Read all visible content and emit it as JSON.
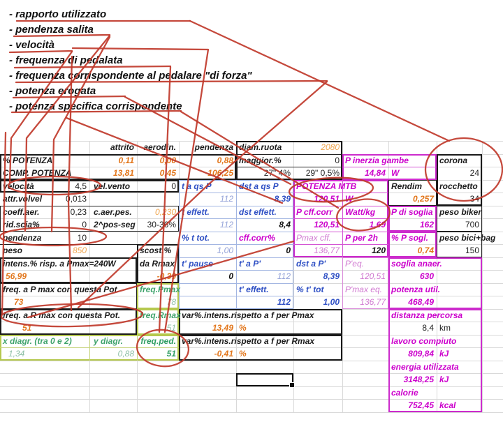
{
  "colors": {
    "annotation_red": "#c0392b",
    "accent_magenta": "#cc00cc",
    "accent_orange": "#e2761b",
    "accent_blue": "#2e4fc4",
    "accent_green": "#3fa36b"
  },
  "annotations": {
    "items": [
      "- rapporto utilizzato",
      "- pendenza salita",
      "- velocità",
      "- frequenza di pedalata",
      "- frequenza corrispondente al pedalare \"di forza\"",
      "- potenza erogata",
      "- potenza specifica corrispondente"
    ]
  },
  "sheet": {
    "selected_cell": {
      "value": ""
    },
    "cells": [
      {
        "r": 0,
        "c": 1,
        "e": 3,
        "t": "attrito",
        "k": "lbl",
        "a": "r"
      },
      {
        "r": 0,
        "c": 3,
        "t": "aerodin.",
        "k": "lbl",
        "a": "r"
      },
      {
        "r": 0,
        "c": 4,
        "t": "pendenza",
        "k": "lbl",
        "a": "r"
      },
      {
        "r": 0,
        "c": 5,
        "t": "diam.ruota",
        "k": "lbl"
      },
      {
        "r": 0,
        "c": 6,
        "t": "2080",
        "k": "orgl",
        "a": "r"
      },
      {
        "r": 1,
        "c": 0,
        "e": 2,
        "t": "% POTENZA",
        "k": "lbl"
      },
      {
        "r": 1,
        "c": 2,
        "t": "0,11",
        "k": "org",
        "a": "r"
      },
      {
        "r": 1,
        "c": 3,
        "t": "0,00",
        "k": "org",
        "a": "r"
      },
      {
        "r": 1,
        "c": 4,
        "t": "0,88",
        "k": "org",
        "a": "r"
      },
      {
        "r": 1,
        "c": 5,
        "t": "maggior.%",
        "k": "lbl"
      },
      {
        "r": 1,
        "c": 6,
        "t": "0",
        "k": "num",
        "a": "r"
      },
      {
        "r": 1,
        "c": 7,
        "e": 9,
        "t": "P inerzia gambe",
        "k": "mag"
      },
      {
        "r": 1,
        "c": 9,
        "t": "corona",
        "k": "lbl",
        "n": "corona-label"
      },
      {
        "r": 2,
        "c": 0,
        "e": 2,
        "t": "COMP. POTENZA",
        "k": "lbl"
      },
      {
        "r": 2,
        "c": 2,
        "t": "13,81",
        "k": "org",
        "a": "r"
      },
      {
        "r": 2,
        "c": 3,
        "t": "0,45",
        "k": "org",
        "a": "r"
      },
      {
        "r": 2,
        "c": 4,
        "t": "106,25",
        "k": "org",
        "a": "r"
      },
      {
        "r": 2,
        "c": 5,
        "t": "27\" 4%",
        "k": "num",
        "a": "r"
      },
      {
        "r": 2,
        "c": 6,
        "t": "29\" 0,5%",
        "k": "num",
        "a": "r"
      },
      {
        "r": 2,
        "c": 7,
        "t": "14,84",
        "k": "mag",
        "a": "r"
      },
      {
        "r": 2,
        "c": 8,
        "t": "W",
        "k": "mag"
      },
      {
        "r": 2,
        "c": 9,
        "t": "24",
        "k": "num",
        "a": "r",
        "n": "corona-value"
      },
      {
        "r": 3,
        "c": 0,
        "e": 2,
        "t": "velocità",
        "k": "lbl",
        "n": "velocita-label"
      },
      {
        "r": 3,
        "c": 1,
        "t": "4,5",
        "k": "num",
        "a": "r",
        "n": "velocita-value"
      },
      {
        "r": 3,
        "c": 2,
        "t": "vel.vento",
        "k": "lbl",
        "p": 6
      },
      {
        "r": 3,
        "c": 3,
        "t": "0",
        "k": "num",
        "a": "r"
      },
      {
        "r": 3,
        "c": 4,
        "t": "t a qs P",
        "k": "blu"
      },
      {
        "r": 3,
        "c": 5,
        "t": "dst a qs P",
        "k": "blu"
      },
      {
        "r": 3,
        "c": 6,
        "e": 8,
        "t": "POTENZA MTB",
        "k": "mag",
        "n": "potenza-mtb-label"
      },
      {
        "r": 3,
        "c": 8,
        "t": "Rendim",
        "k": "lbl"
      },
      {
        "r": 3,
        "c": 9,
        "t": "rocchetto",
        "k": "lbl",
        "n": "rocchetto-label"
      },
      {
        "r": 4,
        "c": 0,
        "e": 2,
        "t": "attr.volvel",
        "k": "lbl"
      },
      {
        "r": 4,
        "c": 1,
        "t": "0,013",
        "k": "num",
        "a": "r"
      },
      {
        "r": 4,
        "c": 4,
        "t": "112",
        "k": "blul",
        "a": "r"
      },
      {
        "r": 4,
        "c": 5,
        "t": "8,39",
        "k": "blu",
        "a": "r"
      },
      {
        "r": 4,
        "c": 6,
        "t": "120,51",
        "k": "mag",
        "a": "r",
        "n": "potenza-mtb-value"
      },
      {
        "r": 4,
        "c": 7,
        "t": "W",
        "k": "mag"
      },
      {
        "r": 4,
        "c": 8,
        "t": "0,257",
        "k": "org",
        "a": "r"
      },
      {
        "r": 4,
        "c": 9,
        "t": "34",
        "k": "num",
        "a": "r",
        "n": "rocchetto-value"
      },
      {
        "r": 5,
        "c": 0,
        "e": 2,
        "t": "coeff.aer.",
        "k": "lbl"
      },
      {
        "r": 5,
        "c": 1,
        "t": "0,23",
        "k": "num",
        "a": "r"
      },
      {
        "r": 5,
        "c": 2,
        "e": 4,
        "t": "c.aer.pes.",
        "k": "lbl",
        "p": 6
      },
      {
        "r": 5,
        "c": 3,
        "t": "0,230",
        "k": "orgl",
        "a": "r"
      },
      {
        "r": 5,
        "c": 4,
        "t": "t effett.",
        "k": "blu"
      },
      {
        "r": 5,
        "c": 5,
        "t": "dst effett.",
        "k": "blu"
      },
      {
        "r": 5,
        "c": 6,
        "t": "P cff.corr",
        "k": "mag"
      },
      {
        "r": 5,
        "c": 7,
        "t": "Watt/kg",
        "k": "mag",
        "n": "watt-kg-label"
      },
      {
        "r": 5,
        "c": 8,
        "t": "P di soglia",
        "k": "mag"
      },
      {
        "r": 5,
        "c": 9,
        "t": "peso biker",
        "k": "lbl"
      },
      {
        "r": 6,
        "c": 0,
        "e": 2,
        "t": "rid.scia%",
        "k": "lbl"
      },
      {
        "r": 6,
        "c": 1,
        "t": "0",
        "k": "num",
        "a": "r"
      },
      {
        "r": 6,
        "c": 2,
        "e": 4,
        "t": "2^pos-seg",
        "k": "lbl",
        "p": 6
      },
      {
        "r": 6,
        "c": 3,
        "t": "30-36%",
        "k": "num",
        "a": "r"
      },
      {
        "r": 6,
        "c": 4,
        "t": "112",
        "k": "blul",
        "a": "r"
      },
      {
        "r": 6,
        "c": 5,
        "t": "8,4",
        "k": "numb",
        "a": "r"
      },
      {
        "r": 6,
        "c": 6,
        "t": "120,51",
        "k": "mag",
        "a": "r"
      },
      {
        "r": 6,
        "c": 7,
        "t": "1,69",
        "k": "mag",
        "a": "r",
        "n": "watt-kg-value"
      },
      {
        "r": 6,
        "c": 8,
        "t": "162",
        "k": "mag",
        "a": "r"
      },
      {
        "r": 6,
        "c": 9,
        "t": "700",
        "k": "num",
        "a": "r"
      },
      {
        "r": 7,
        "c": 0,
        "e": 2,
        "t": "pendenza",
        "k": "lbl",
        "n": "pendenza-label"
      },
      {
        "r": 7,
        "c": 1,
        "t": "10",
        "k": "num",
        "a": "r",
        "n": "pendenza-value"
      },
      {
        "r": 7,
        "c": 4,
        "t": "% t tot.",
        "k": "blu"
      },
      {
        "r": 7,
        "c": 5,
        "t": "cff.corr%",
        "k": "mag"
      },
      {
        "r": 7,
        "c": 6,
        "t": "Pmax cff.",
        "k": "magl"
      },
      {
        "r": 7,
        "c": 7,
        "t": "P per 2h",
        "k": "mag"
      },
      {
        "r": 7,
        "c": 8,
        "t": "% P sogl.",
        "k": "mag"
      },
      {
        "r": 7,
        "c": 9,
        "t": "peso bici+bag",
        "k": "lbl"
      },
      {
        "r": 8,
        "c": 0,
        "e": 2,
        "t": "peso",
        "k": "lbl"
      },
      {
        "r": 8,
        "c": 1,
        "t": "850",
        "k": "orgl",
        "a": "r"
      },
      {
        "r": 8,
        "c": 3,
        "t": "scost.%",
        "k": "lbl"
      },
      {
        "r": 8,
        "c": 4,
        "t": "1,00",
        "k": "blul",
        "a": "r"
      },
      {
        "r": 8,
        "c": 5,
        "t": "0",
        "k": "numb",
        "a": "r"
      },
      {
        "r": 8,
        "c": 6,
        "t": "136,77",
        "k": "magl",
        "a": "r"
      },
      {
        "r": 8,
        "c": 7,
        "t": "120",
        "k": "numb",
        "a": "r"
      },
      {
        "r": 8,
        "c": 8,
        "t": "0,74",
        "k": "org",
        "a": "r"
      },
      {
        "r": 8,
        "c": 9,
        "t": "150",
        "k": "num",
        "a": "r"
      },
      {
        "r": 9,
        "c": 0,
        "e": 3,
        "t": "intens.% risp. a Pmax=240W",
        "k": "lbl"
      },
      {
        "r": 9,
        "c": 3,
        "t": "da Rmax",
        "k": "lbl"
      },
      {
        "r": 9,
        "c": 4,
        "t": "t' pause",
        "k": "blu"
      },
      {
        "r": 9,
        "c": 5,
        "t": "t' a P'",
        "k": "blu"
      },
      {
        "r": 9,
        "c": 6,
        "t": "dst a P'",
        "k": "blu"
      },
      {
        "r": 9,
        "c": 7,
        "t": "P'eq.",
        "k": "magl"
      },
      {
        "r": 9,
        "c": 8,
        "e": 10,
        "t": "soglia anaer.",
        "k": "mag"
      },
      {
        "r": 10,
        "c": 0,
        "e": 2,
        "t": "56,99",
        "k": "org",
        "p": 8
      },
      {
        "r": 10,
        "c": 3,
        "t": "-0,39",
        "k": "org",
        "a": "r"
      },
      {
        "r": 10,
        "c": 4,
        "t": "0",
        "k": "numb",
        "a": "r"
      },
      {
        "r": 10,
        "c": 5,
        "t": "112",
        "k": "blul",
        "a": "r"
      },
      {
        "r": 10,
        "c": 6,
        "t": "8,39",
        "k": "blu",
        "a": "r"
      },
      {
        "r": 10,
        "c": 7,
        "t": "120,51",
        "k": "magl",
        "a": "r"
      },
      {
        "r": 10,
        "c": 8,
        "t": "630",
        "k": "mag",
        "a": "r"
      },
      {
        "r": 11,
        "c": 0,
        "e": 3,
        "t": "freq. a P max con questa Pot.",
        "k": "lbl"
      },
      {
        "r": 11,
        "c": 3,
        "t": "freq.Pmax",
        "k": "grn"
      },
      {
        "r": 11,
        "c": 5,
        "t": "t' effett.",
        "k": "blu"
      },
      {
        "r": 11,
        "c": 6,
        "t": "% t' tot",
        "k": "blu"
      },
      {
        "r": 11,
        "c": 7,
        "t": "P'max eq.",
        "k": "magl"
      },
      {
        "r": 11,
        "c": 8,
        "e": 10,
        "t": "potenza util.",
        "k": "mag"
      },
      {
        "r": 12,
        "c": 0,
        "e": 2,
        "t": "73",
        "k": "org",
        "p": 20
      },
      {
        "r": 12,
        "c": 3,
        "t": "78",
        "k": "grnl",
        "a": "r"
      },
      {
        "r": 12,
        "c": 5,
        "t": "112",
        "k": "blu",
        "a": "r"
      },
      {
        "r": 12,
        "c": 6,
        "t": "1,00",
        "k": "blu",
        "a": "r"
      },
      {
        "r": 12,
        "c": 7,
        "t": "136,77",
        "k": "magl",
        "a": "r"
      },
      {
        "r": 12,
        "c": 8,
        "t": "468,49",
        "k": "mag",
        "a": "r"
      },
      {
        "r": 13,
        "c": 0,
        "e": 3,
        "t": "freq. a R max con questa Pot.",
        "k": "lbl",
        "n": "freq-rmax-label"
      },
      {
        "r": 13,
        "c": 3,
        "t": "freq.Rmax",
        "k": "grn"
      },
      {
        "r": 13,
        "c": 4,
        "e": 7,
        "t": "var%.intens.rispetto a f per Pmax",
        "k": "lbl"
      },
      {
        "r": 13,
        "c": 8,
        "e": 10,
        "t": "distanza percorsa",
        "k": "mag"
      },
      {
        "r": 14,
        "c": 0,
        "e": 2,
        "t": "51",
        "k": "org",
        "p": 32,
        "n": "freq-rmax-value"
      },
      {
        "r": 14,
        "c": 3,
        "t": "51",
        "k": "grnl",
        "a": "r"
      },
      {
        "r": 14,
        "c": 4,
        "t": "13,49",
        "k": "org",
        "a": "r"
      },
      {
        "r": 14,
        "c": 5,
        "t": "%",
        "k": "org"
      },
      {
        "r": 14,
        "c": 8,
        "t": "8,4",
        "k": "num",
        "a": "r"
      },
      {
        "r": 14,
        "c": 9,
        "t": "km",
        "k": "num"
      },
      {
        "r": 15,
        "c": 0,
        "e": 2,
        "t": "x diagr. (tra 0 e 2)",
        "k": "grn"
      },
      {
        "r": 15,
        "c": 2,
        "t": "y diagr.",
        "k": "grn",
        "p": 6
      },
      {
        "r": 15,
        "c": 3,
        "t": "freq.ped.",
        "k": "grnb",
        "a": "r",
        "n": "freq-ped-label"
      },
      {
        "r": 15,
        "c": 4,
        "e": 7,
        "t": "var%.intens.rispetto a f per Rmax",
        "k": "lbl"
      },
      {
        "r": 15,
        "c": 8,
        "e": 10,
        "t": "lavoro compiuto",
        "k": "mag"
      },
      {
        "r": 16,
        "c": 0,
        "e": 2,
        "t": "1,34",
        "k": "grnl",
        "p": 12
      },
      {
        "r": 16,
        "c": 2,
        "t": "0,88",
        "k": "grnl",
        "a": "r"
      },
      {
        "r": 16,
        "c": 3,
        "t": "51",
        "k": "grnb",
        "a": "r",
        "n": "freq-ped-value"
      },
      {
        "r": 16,
        "c": 4,
        "t": "-0,41",
        "k": "org",
        "a": "r"
      },
      {
        "r": 16,
        "c": 5,
        "t": "%",
        "k": "org"
      },
      {
        "r": 16,
        "c": 8,
        "t": "809,84",
        "k": "mag",
        "a": "r"
      },
      {
        "r": 16,
        "c": 9,
        "t": "kJ",
        "k": "mag"
      },
      {
        "r": 17,
        "c": 8,
        "e": 10,
        "t": "energia utilizzata",
        "k": "mag"
      },
      {
        "r": 18,
        "c": 8,
        "t": "3148,25",
        "k": "mag",
        "a": "r"
      },
      {
        "r": 18,
        "c": 9,
        "t": "kJ",
        "k": "mag"
      },
      {
        "r": 19,
        "c": 8,
        "e": 10,
        "t": "calorie",
        "k": "mag"
      },
      {
        "r": 20,
        "c": 8,
        "t": "752,45",
        "k": "mag",
        "a": "r"
      },
      {
        "r": 20,
        "c": 9,
        "t": "kcal",
        "k": "mag"
      }
    ]
  }
}
